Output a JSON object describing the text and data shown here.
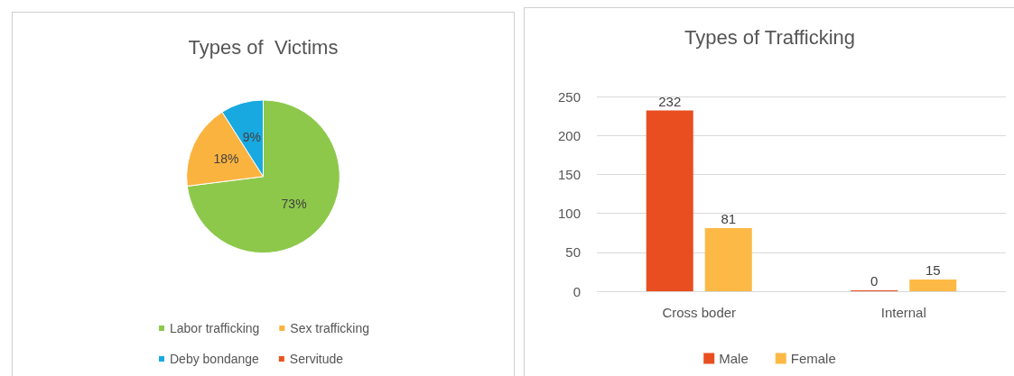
{
  "chart_data": [
    {
      "type": "pie",
      "title": "Types of  Victims",
      "categories": [
        "Labor trafficking",
        "Sex trafficking",
        "Deby bondange",
        "Servitude"
      ],
      "values": [
        73,
        18,
        9,
        0
      ],
      "colors": [
        "#8dc84b",
        "#fbb340",
        "#18a9e1",
        "#e8541e"
      ],
      "value_labels": [
        "73%",
        "18%",
        "9%",
        null
      ],
      "legend": "bottom"
    },
    {
      "type": "bar",
      "title": "Types of Trafficking",
      "categories": [
        "Cross boder",
        "Internal"
      ],
      "series": [
        {
          "name": "Male",
          "color": "#e84e1f",
          "values": [
            232,
            0
          ]
        },
        {
          "name": "Female",
          "color": "#fdb946",
          "values": [
            81,
            15
          ]
        }
      ],
      "ylim": [
        0,
        250
      ],
      "yticks": [
        0,
        50,
        100,
        150,
        200,
        250
      ],
      "grid": "y",
      "data_labels": true,
      "legend": "bottom"
    }
  ]
}
